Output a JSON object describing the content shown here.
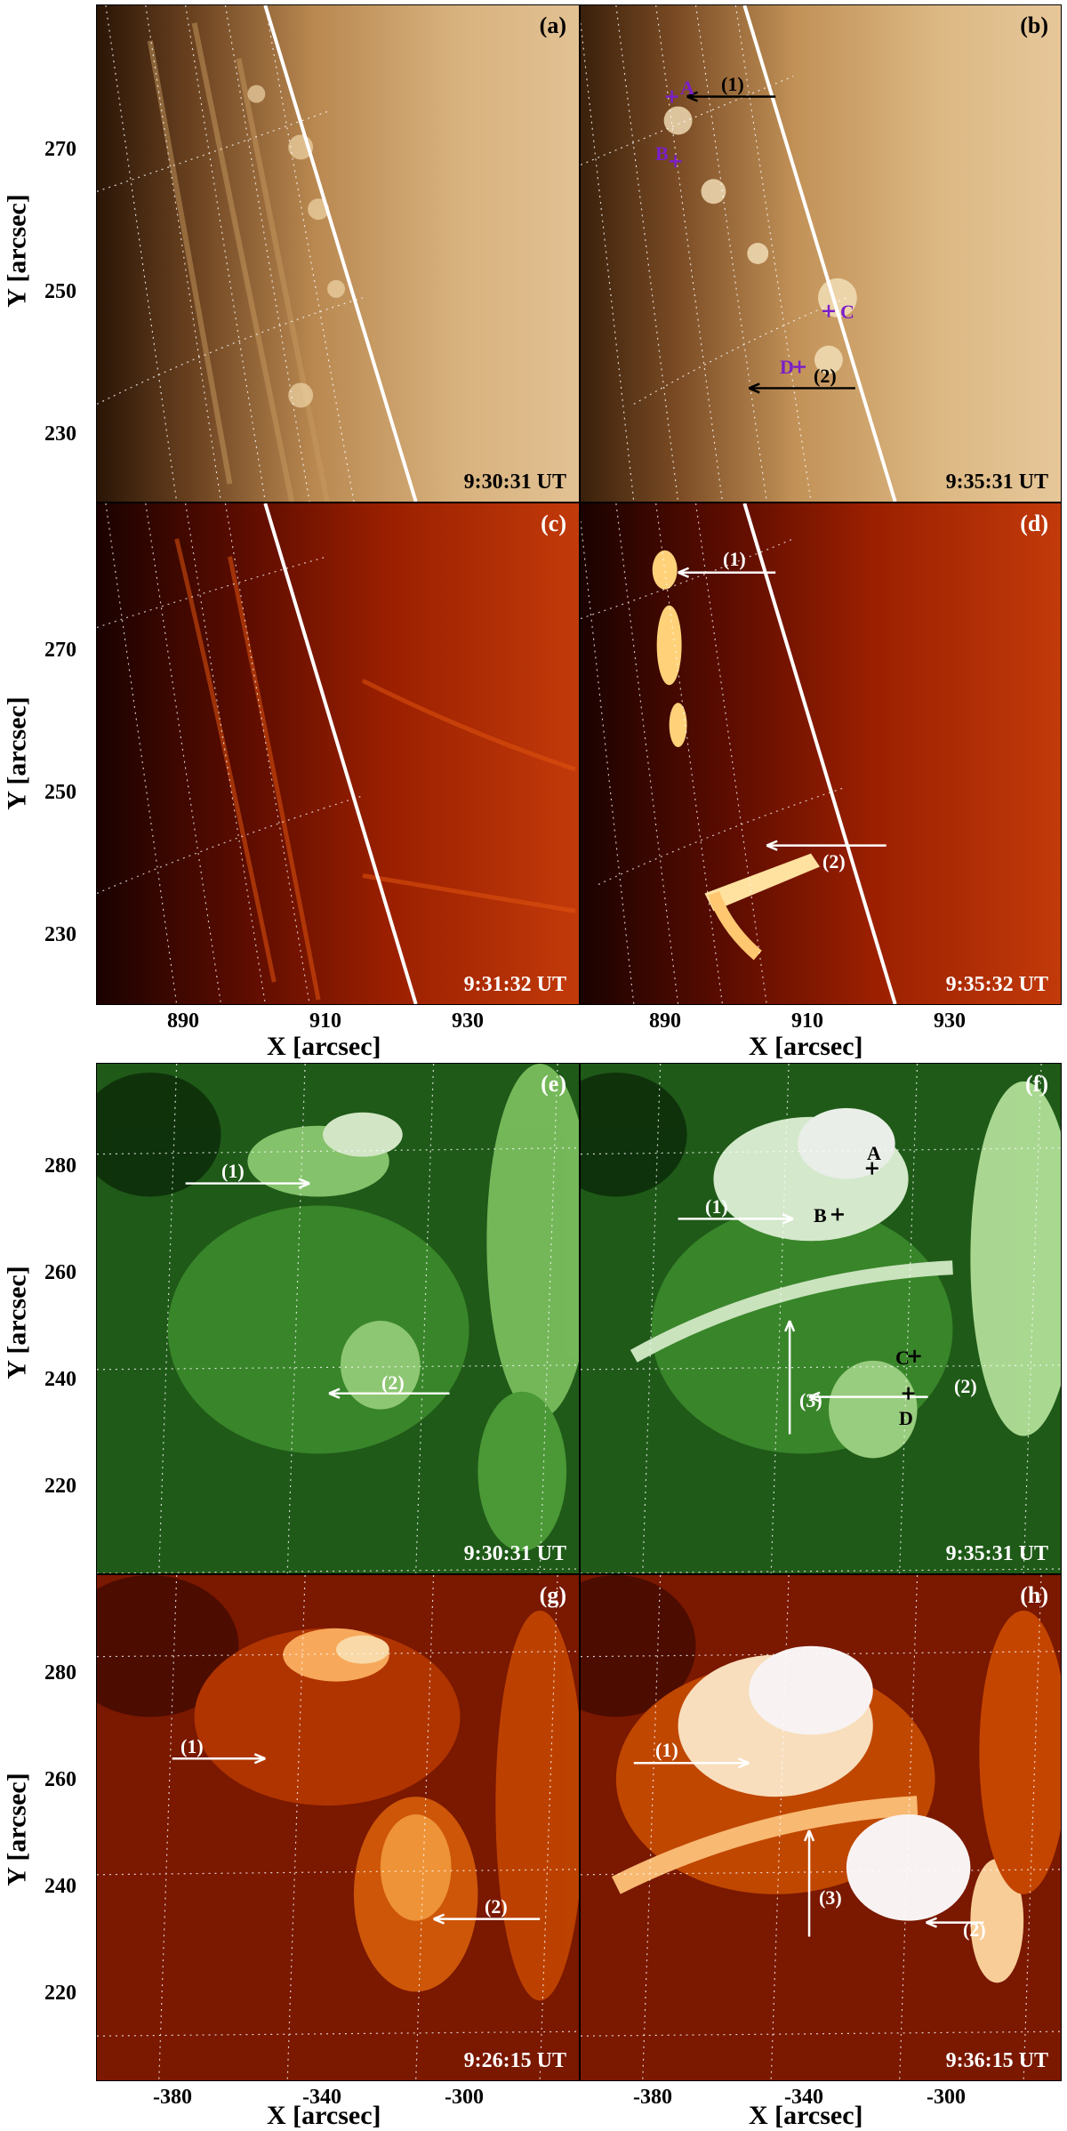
{
  "panels": [
    {
      "id": "a",
      "label": "(a)",
      "time": "9:30:31 UT",
      "label_color": "#000",
      "time_color": "#000"
    },
    {
      "id": "b",
      "label": "(b)",
      "time": "9:35:31 UT",
      "label_color": "#000",
      "time_color": "#000"
    },
    {
      "id": "c",
      "label": "(c)",
      "time": "9:31:32 UT",
      "label_color": "#fff",
      "time_color": "#fff"
    },
    {
      "id": "d",
      "label": "(d)",
      "time": "9:35:32 UT",
      "label_color": "#fff",
      "time_color": "#fff"
    },
    {
      "id": "e",
      "label": "(e)",
      "time": "9:30:31 UT",
      "label_color": "#fff",
      "time_color": "#fff"
    },
    {
      "id": "f",
      "label": "(f)",
      "time": "9:35:31 UT",
      "label_color": "#fff",
      "time_color": "#fff"
    },
    {
      "id": "g",
      "label": "(g)",
      "time": "9:26:15 UT",
      "label_color": "#fff",
      "time_color": "#fff"
    },
    {
      "id": "h",
      "label": "(h)",
      "time": "9:36:15 UT",
      "label_color": "#fff",
      "time_color": "#fff"
    }
  ],
  "axes": {
    "ylabel": "Y [arcsec]",
    "xlabel": "X [arcsec]",
    "top_yticks": [
      "270",
      "250",
      "230"
    ],
    "top_xticks": [
      "890",
      "910",
      "930"
    ],
    "bottom_yticks": [
      "280",
      "260",
      "240",
      "220"
    ],
    "bottom_xticks": [
      "-380",
      "-340",
      "-300"
    ]
  },
  "annotations": {
    "one": "(1)",
    "two": "(2)",
    "three": "(3)",
    "A": "A",
    "B": "B",
    "C": "C",
    "D": "D"
  },
  "colors": {
    "gold": "#b77a35",
    "red": "#8b1500",
    "green": "#3f9a2e",
    "orange": "#c23c00",
    "purple": "#7b1fc8"
  }
}
